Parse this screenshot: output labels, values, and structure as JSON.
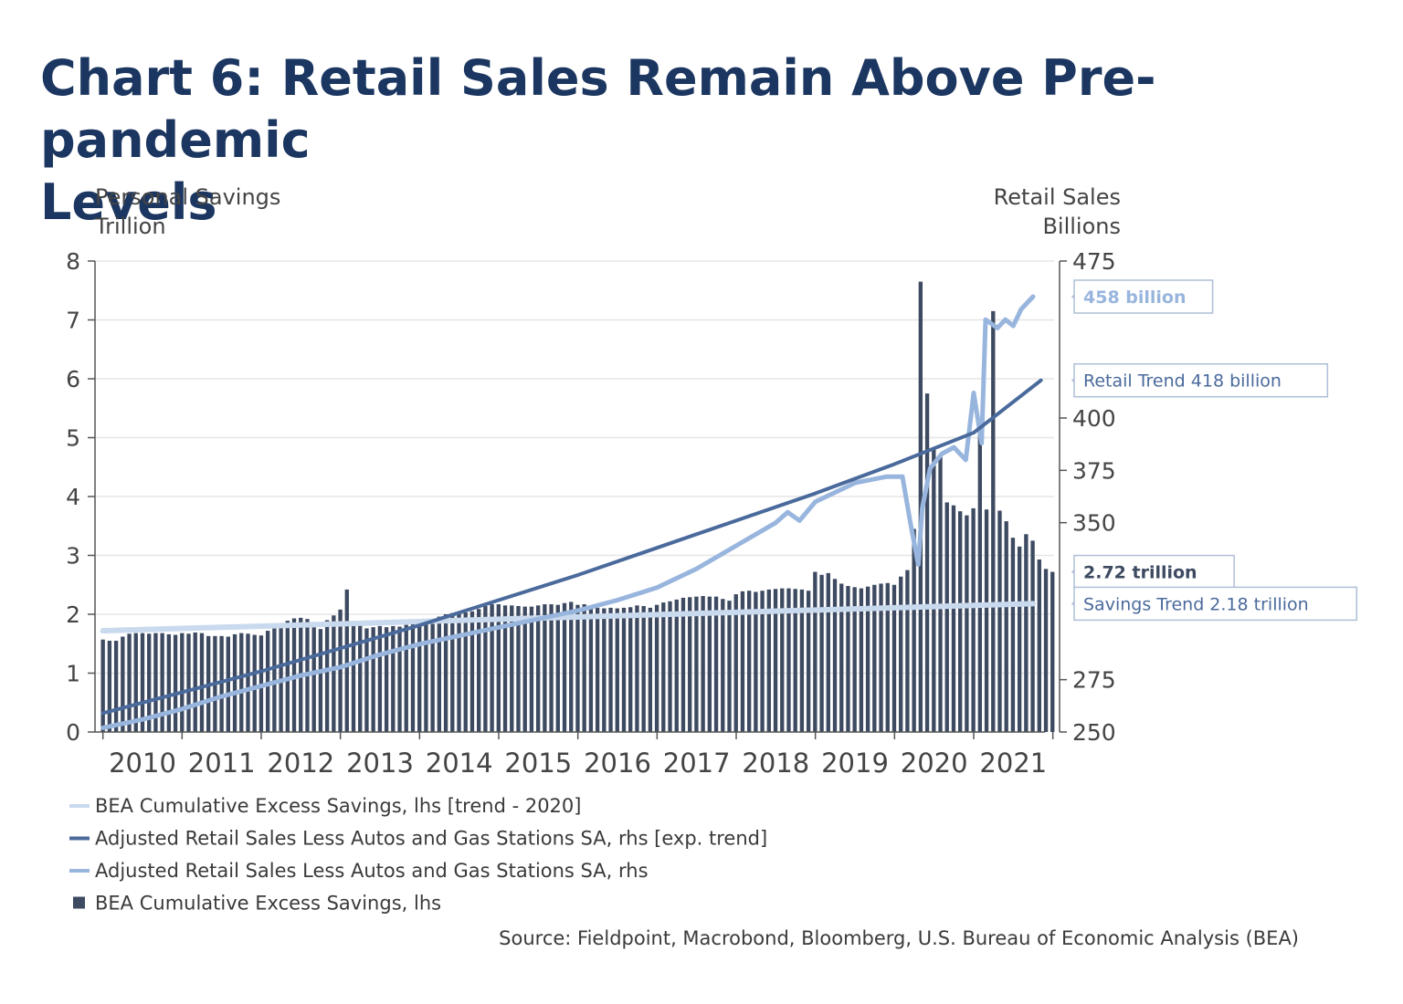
{
  "title": {
    "line1": "Chart 6: Retail Sales Remain Above Pre-pandemic",
    "line2": "Levels"
  },
  "source": "Source: Fieldpoint, Macrobond, Bloomberg, U.S. Bureau of Economic Analysis (BEA)",
  "colors": {
    "title": "#1b3660",
    "bars": "#3d4a61",
    "savings_trend": "#c9d9ee",
    "retail_trend": "#4a6a9c",
    "retail_sales": "#98b5de",
    "grid": "#e6e6e6",
    "axis": "#555555"
  },
  "chart_data": {
    "type": "bar+line",
    "y_left": {
      "title_line1": "Personal Savings",
      "title_line2": "Trillion",
      "range": [
        0,
        8
      ],
      "ticks": [
        "0",
        "1",
        "2",
        "3",
        "4",
        "5",
        "6",
        "7",
        "8"
      ]
    },
    "y_right": {
      "title_line1": "Retail Sales",
      "title_line2": "Billions",
      "range": [
        250,
        475
      ],
      "ticks": [
        "250",
        "275",
        "350",
        "375",
        "400",
        "475"
      ]
    },
    "x_axis": {
      "range": [
        2009.9,
        2021.9
      ],
      "tick_labels": [
        "2010",
        "2011",
        "2012",
        "2013",
        "2014",
        "2015",
        "2016",
        "2017",
        "2018",
        "2019",
        "2020",
        "2021"
      ]
    },
    "legend": [
      {
        "label": "BEA Cumulative Excess Savings, lhs [trend - 2020]",
        "marker": "line",
        "color_key": "savings_trend"
      },
      {
        "label": "Adjusted Retail Sales Less Autos and Gas Stations SA, rhs [exp. trend]",
        "marker": "line",
        "color_key": "retail_trend"
      },
      {
        "label": "Adjusted Retail Sales Less Autos and Gas Stations SA, rhs",
        "marker": "line",
        "color_key": "retail_sales"
      },
      {
        "label": "BEA Cumulative Excess Savings, lhs",
        "marker": "square",
        "color_key": "bars"
      }
    ],
    "callouts": [
      {
        "text": "458 billion",
        "axis": "right",
        "value": 458,
        "bold": true,
        "color_key": "retail_sales"
      },
      {
        "text": "Retail Trend 418 billion",
        "axis": "right",
        "value": 418,
        "bold": false,
        "color_key": "retail_trend"
      },
      {
        "text": "2.72 trillion",
        "axis": "left",
        "value": 2.72,
        "bold": true,
        "color_key": "bars"
      },
      {
        "text": "Savings Trend 2.18 trillion",
        "axis": "left",
        "value": 2.18,
        "bold": false,
        "color_key": "retail_trend"
      }
    ],
    "series": [
      {
        "name": "BEA Cumulative Excess Savings, lhs",
        "type": "bar",
        "axis": "left",
        "x_start": 2010.0,
        "x_step": 0.0833,
        "values": [
          1.57,
          1.55,
          1.55,
          1.62,
          1.67,
          1.68,
          1.68,
          1.67,
          1.68,
          1.68,
          1.66,
          1.65,
          1.68,
          1.67,
          1.69,
          1.68,
          1.63,
          1.63,
          1.63,
          1.62,
          1.66,
          1.68,
          1.67,
          1.65,
          1.64,
          1.72,
          1.76,
          1.78,
          1.89,
          1.93,
          1.94,
          1.92,
          1.78,
          1.75,
          1.9,
          1.98,
          2.08,
          2.42,
          1.88,
          1.82,
          1.76,
          1.78,
          1.8,
          1.78,
          1.8,
          1.79,
          1.82,
          1.84,
          1.86,
          1.88,
          1.92,
          1.96,
          2.0,
          2.02,
          2.01,
          2.03,
          2.05,
          2.09,
          2.14,
          2.17,
          2.17,
          2.15,
          2.15,
          2.14,
          2.13,
          2.13,
          2.15,
          2.17,
          2.17,
          2.16,
          2.19,
          2.21,
          2.16,
          2.17,
          2.14,
          2.11,
          2.1,
          2.11,
          2.1,
          2.11,
          2.12,
          2.15,
          2.14,
          2.11,
          2.16,
          2.2,
          2.22,
          2.25,
          2.28,
          2.29,
          2.3,
          2.31,
          2.3,
          2.3,
          2.26,
          2.23,
          2.34,
          2.39,
          2.4,
          2.38,
          2.4,
          2.42,
          2.43,
          2.44,
          2.44,
          2.43,
          2.42,
          2.4,
          2.72,
          2.67,
          2.7,
          2.6,
          2.52,
          2.48,
          2.46,
          2.44,
          2.47,
          2.5,
          2.52,
          2.53,
          2.5,
          2.64,
          2.75,
          3.45,
          7.65,
          5.75,
          4.8,
          4.67,
          3.9,
          3.85,
          3.75,
          3.68,
          3.8,
          5.2,
          3.78,
          7.15,
          3.76,
          3.58,
          3.3,
          3.15,
          3.36,
          3.25,
          2.93,
          2.77,
          2.72
        ]
      },
      {
        "name": "BEA Cumulative Excess Savings, lhs [trend - 2020]",
        "type": "line",
        "axis": "left",
        "points": [
          [
            2010.0,
            1.72
          ],
          [
            2021.75,
            2.18
          ]
        ]
      },
      {
        "name": "Adjusted Retail Sales Less Autos and Gas Stations SA, rhs [exp. trend]",
        "type": "line",
        "axis": "right",
        "points": [
          [
            2010.0,
            259
          ],
          [
            2011.0,
            269
          ],
          [
            2012.0,
            279
          ],
          [
            2013.0,
            290
          ],
          [
            2014.0,
            301
          ],
          [
            2015.0,
            313
          ],
          [
            2016.0,
            325
          ],
          [
            2017.0,
            338
          ],
          [
            2018.0,
            351
          ],
          [
            2019.0,
            364
          ],
          [
            2020.0,
            378
          ],
          [
            2021.0,
            393
          ],
          [
            2021.85,
            418
          ]
        ]
      },
      {
        "name": "Adjusted Retail Sales Less Autos and Gas Stations SA, rhs",
        "type": "line",
        "axis": "right",
        "points": [
          [
            2010.0,
            252
          ],
          [
            2010.5,
            256
          ],
          [
            2011.0,
            261
          ],
          [
            2011.5,
            267
          ],
          [
            2012.0,
            272
          ],
          [
            2012.5,
            277
          ],
          [
            2013.0,
            281
          ],
          [
            2013.5,
            287
          ],
          [
            2014.0,
            292
          ],
          [
            2014.5,
            296
          ],
          [
            2015.0,
            300
          ],
          [
            2015.5,
            304
          ],
          [
            2016.0,
            308
          ],
          [
            2016.5,
            313
          ],
          [
            2017.0,
            319
          ],
          [
            2017.5,
            328
          ],
          [
            2018.0,
            339
          ],
          [
            2018.5,
            350
          ],
          [
            2018.65,
            355
          ],
          [
            2018.8,
            351
          ],
          [
            2019.0,
            360
          ],
          [
            2019.5,
            369
          ],
          [
            2019.9,
            372
          ],
          [
            2020.1,
            372
          ],
          [
            2020.2,
            350
          ],
          [
            2020.3,
            330
          ],
          [
            2020.35,
            357
          ],
          [
            2020.45,
            376
          ],
          [
            2020.6,
            383
          ],
          [
            2020.75,
            386
          ],
          [
            2020.9,
            380
          ],
          [
            2021.0,
            412
          ],
          [
            2021.1,
            388
          ],
          [
            2021.15,
            447
          ],
          [
            2021.3,
            443
          ],
          [
            2021.4,
            447
          ],
          [
            2021.5,
            444
          ],
          [
            2021.6,
            452
          ],
          [
            2021.75,
            458
          ]
        ]
      }
    ]
  }
}
